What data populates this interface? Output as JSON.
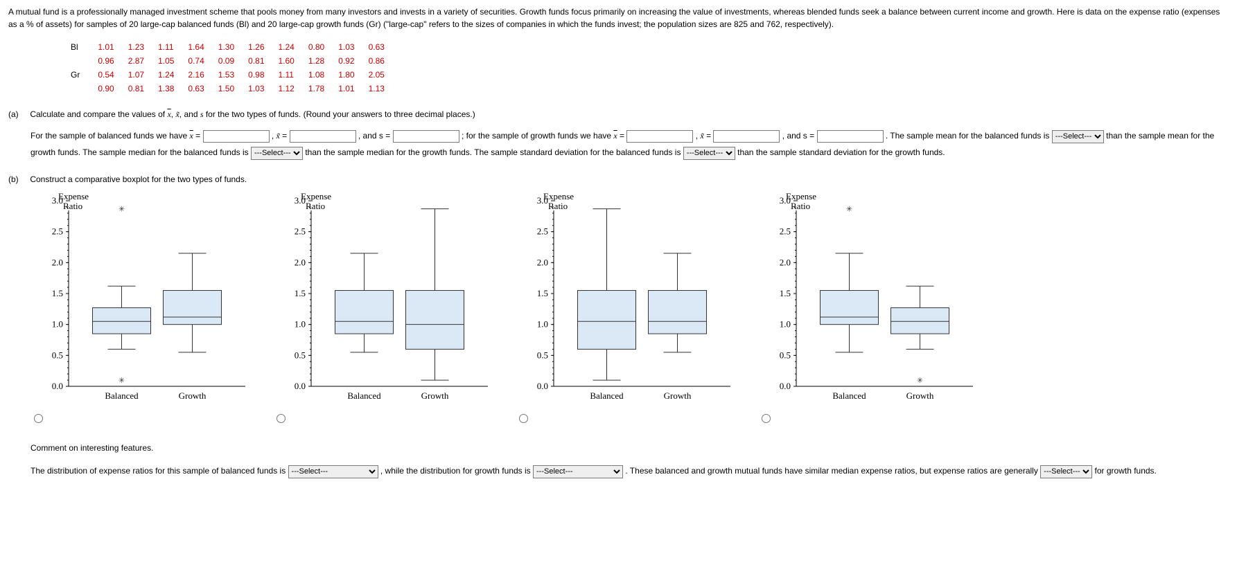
{
  "intro": "A mutual fund is a professionally managed investment scheme that pools money from many investors and invests in a variety of securities. Growth funds focus primarily on increasing the value of investments, whereas blended funds seek a balance between current income and growth. Here is data on the expense ratio (expenses as a % of assets) for samples of 20 large-cap balanced funds (Bl) and 20 large-cap growth funds (Gr) (\"large-cap\" refers to the sizes of companies in which the funds invest; the population sizes are 825 and 762, respectively).",
  "data": {
    "bl_label": "Bl",
    "gr_label": "Gr",
    "bl": [
      [
        "1.01",
        "1.23",
        "1.11",
        "1.64",
        "1.30",
        "1.26",
        "1.24",
        "0.80",
        "1.03",
        "0.63"
      ],
      [
        "0.96",
        "2.87",
        "1.05",
        "0.74",
        "0.09",
        "0.81",
        "1.60",
        "1.28",
        "0.92",
        "0.86"
      ]
    ],
    "gr": [
      [
        "0.54",
        "1.07",
        "1.24",
        "2.16",
        "1.53",
        "0.98",
        "1.11",
        "1.08",
        "1.80",
        "2.05"
      ],
      [
        "0.90",
        "0.81",
        "1.38",
        "0.63",
        "1.50",
        "1.03",
        "1.12",
        "1.78",
        "1.01",
        "1.13"
      ]
    ]
  },
  "part_a": {
    "label": "(a)",
    "prompt": "Calculate and compare the values of x̄, x̃, and s for the two types of funds. (Round your answers to three decimal places.)",
    "sent_pre_bal": "For the sample of balanced funds we have ",
    "sent_grow_lead": "; for the sample of growth funds we have ",
    "and_s": ", and s =",
    "sent_tail": ". The sample mean for the balanced funds is",
    "sent_mid2": "than the sample mean for the growth funds. The sample median for the balanced funds is",
    "sent_mid3": "than the sample median for the growth funds. The sample standard deviation for the balanced funds is",
    "sent_end": "than the sample standard deviation for the growth funds.",
    "select_placeholder": "---Select---"
  },
  "part_b": {
    "label": "(b)",
    "prompt": "Construct a comparative boxplot for the two types of funds.",
    "comment_prompt": "Comment on interesting features.",
    "comment_sent1a": "The distribution of expense ratios for this sample of balanced funds is",
    "comment_sent1b": ", while the distribution for growth funds is",
    "comment_sent1c": ". These balanced and growth mutual funds have similar median expense ratios, but expense ratios are generally",
    "comment_sent1d": "for growth funds.",
    "select_placeholder": "---Select---"
  },
  "chart_common": {
    "title_line1": "Expense",
    "title_line2": "Ratio",
    "ymin": 0.0,
    "ymax": 3.0,
    "ytick_step": 0.5,
    "yticks": [
      "0.0",
      "0.5",
      "1.0",
      "1.5",
      "2.0",
      "2.5",
      "3.0"
    ],
    "xlabels": [
      "Balanced",
      "Growth"
    ],
    "box_fill": "#dbe9f6",
    "box_stroke": "#333333",
    "bg": "#ffffff"
  },
  "charts": [
    {
      "balanced": {
        "q1": 0.85,
        "med": 1.05,
        "q3": 1.27,
        "wlo": 0.6,
        "whi": 1.62,
        "outliers_lo": [
          0.1
        ],
        "outliers_hi": [
          2.87
        ]
      },
      "growth": {
        "q1": 1.0,
        "med": 1.12,
        "q3": 1.55,
        "wlo": 0.55,
        "whi": 2.15,
        "outliers_lo": [],
        "outliers_hi": []
      }
    },
    {
      "balanced": {
        "q1": 0.85,
        "med": 1.05,
        "q3": 1.55,
        "wlo": 0.55,
        "whi": 2.15,
        "outliers_lo": [],
        "outliers_hi": []
      },
      "growth": {
        "q1": 0.6,
        "med": 1.0,
        "q3": 1.55,
        "wlo": 0.1,
        "whi": 2.87,
        "outliers_lo": [],
        "outliers_hi": []
      }
    },
    {
      "balanced": {
        "q1": 0.6,
        "med": 1.05,
        "q3": 1.55,
        "wlo": 0.1,
        "whi": 2.87,
        "outliers_lo": [],
        "outliers_hi": []
      },
      "growth": {
        "q1": 0.85,
        "med": 1.05,
        "q3": 1.55,
        "wlo": 0.55,
        "whi": 2.15,
        "outliers_lo": [],
        "outliers_hi": []
      }
    },
    {
      "balanced": {
        "q1": 1.0,
        "med": 1.12,
        "q3": 1.55,
        "wlo": 0.55,
        "whi": 2.15,
        "outliers_lo": [],
        "outliers_hi": [
          2.87
        ]
      },
      "growth": {
        "q1": 0.85,
        "med": 1.05,
        "q3": 1.27,
        "wlo": 0.6,
        "whi": 1.62,
        "outliers_lo": [
          0.1
        ],
        "outliers_hi": []
      }
    }
  ]
}
